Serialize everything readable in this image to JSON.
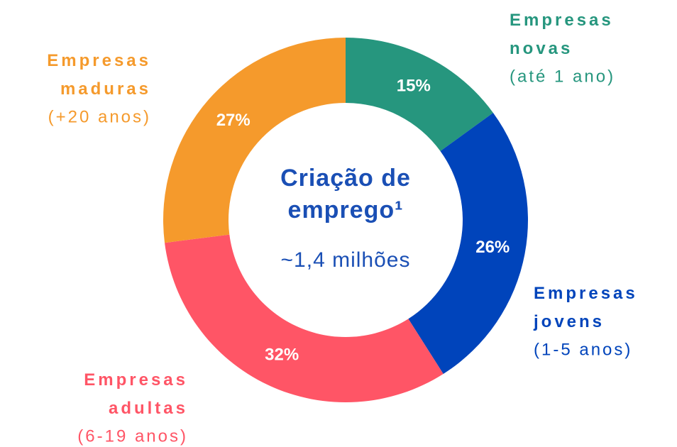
{
  "chart_data": {
    "type": "donut",
    "center_title": "Criação de emprego¹",
    "center_subtitle": "~1,4 milhões",
    "categories": [
      "Empresas novas",
      "Empresas jovens",
      "Empresas adultas",
      "Empresas maduras"
    ],
    "category_notes": [
      "(até 1 ano)",
      "(1-5 anos)",
      "(6-19 anos)",
      "(+20 anos)"
    ],
    "values": [
      15,
      26,
      32,
      27
    ],
    "value_labels": [
      "15%",
      "26%",
      "32%",
      "27%"
    ],
    "colors": [
      "#26967e",
      "#0044bb",
      "#ff5566",
      "#f59a2c"
    ]
  }
}
